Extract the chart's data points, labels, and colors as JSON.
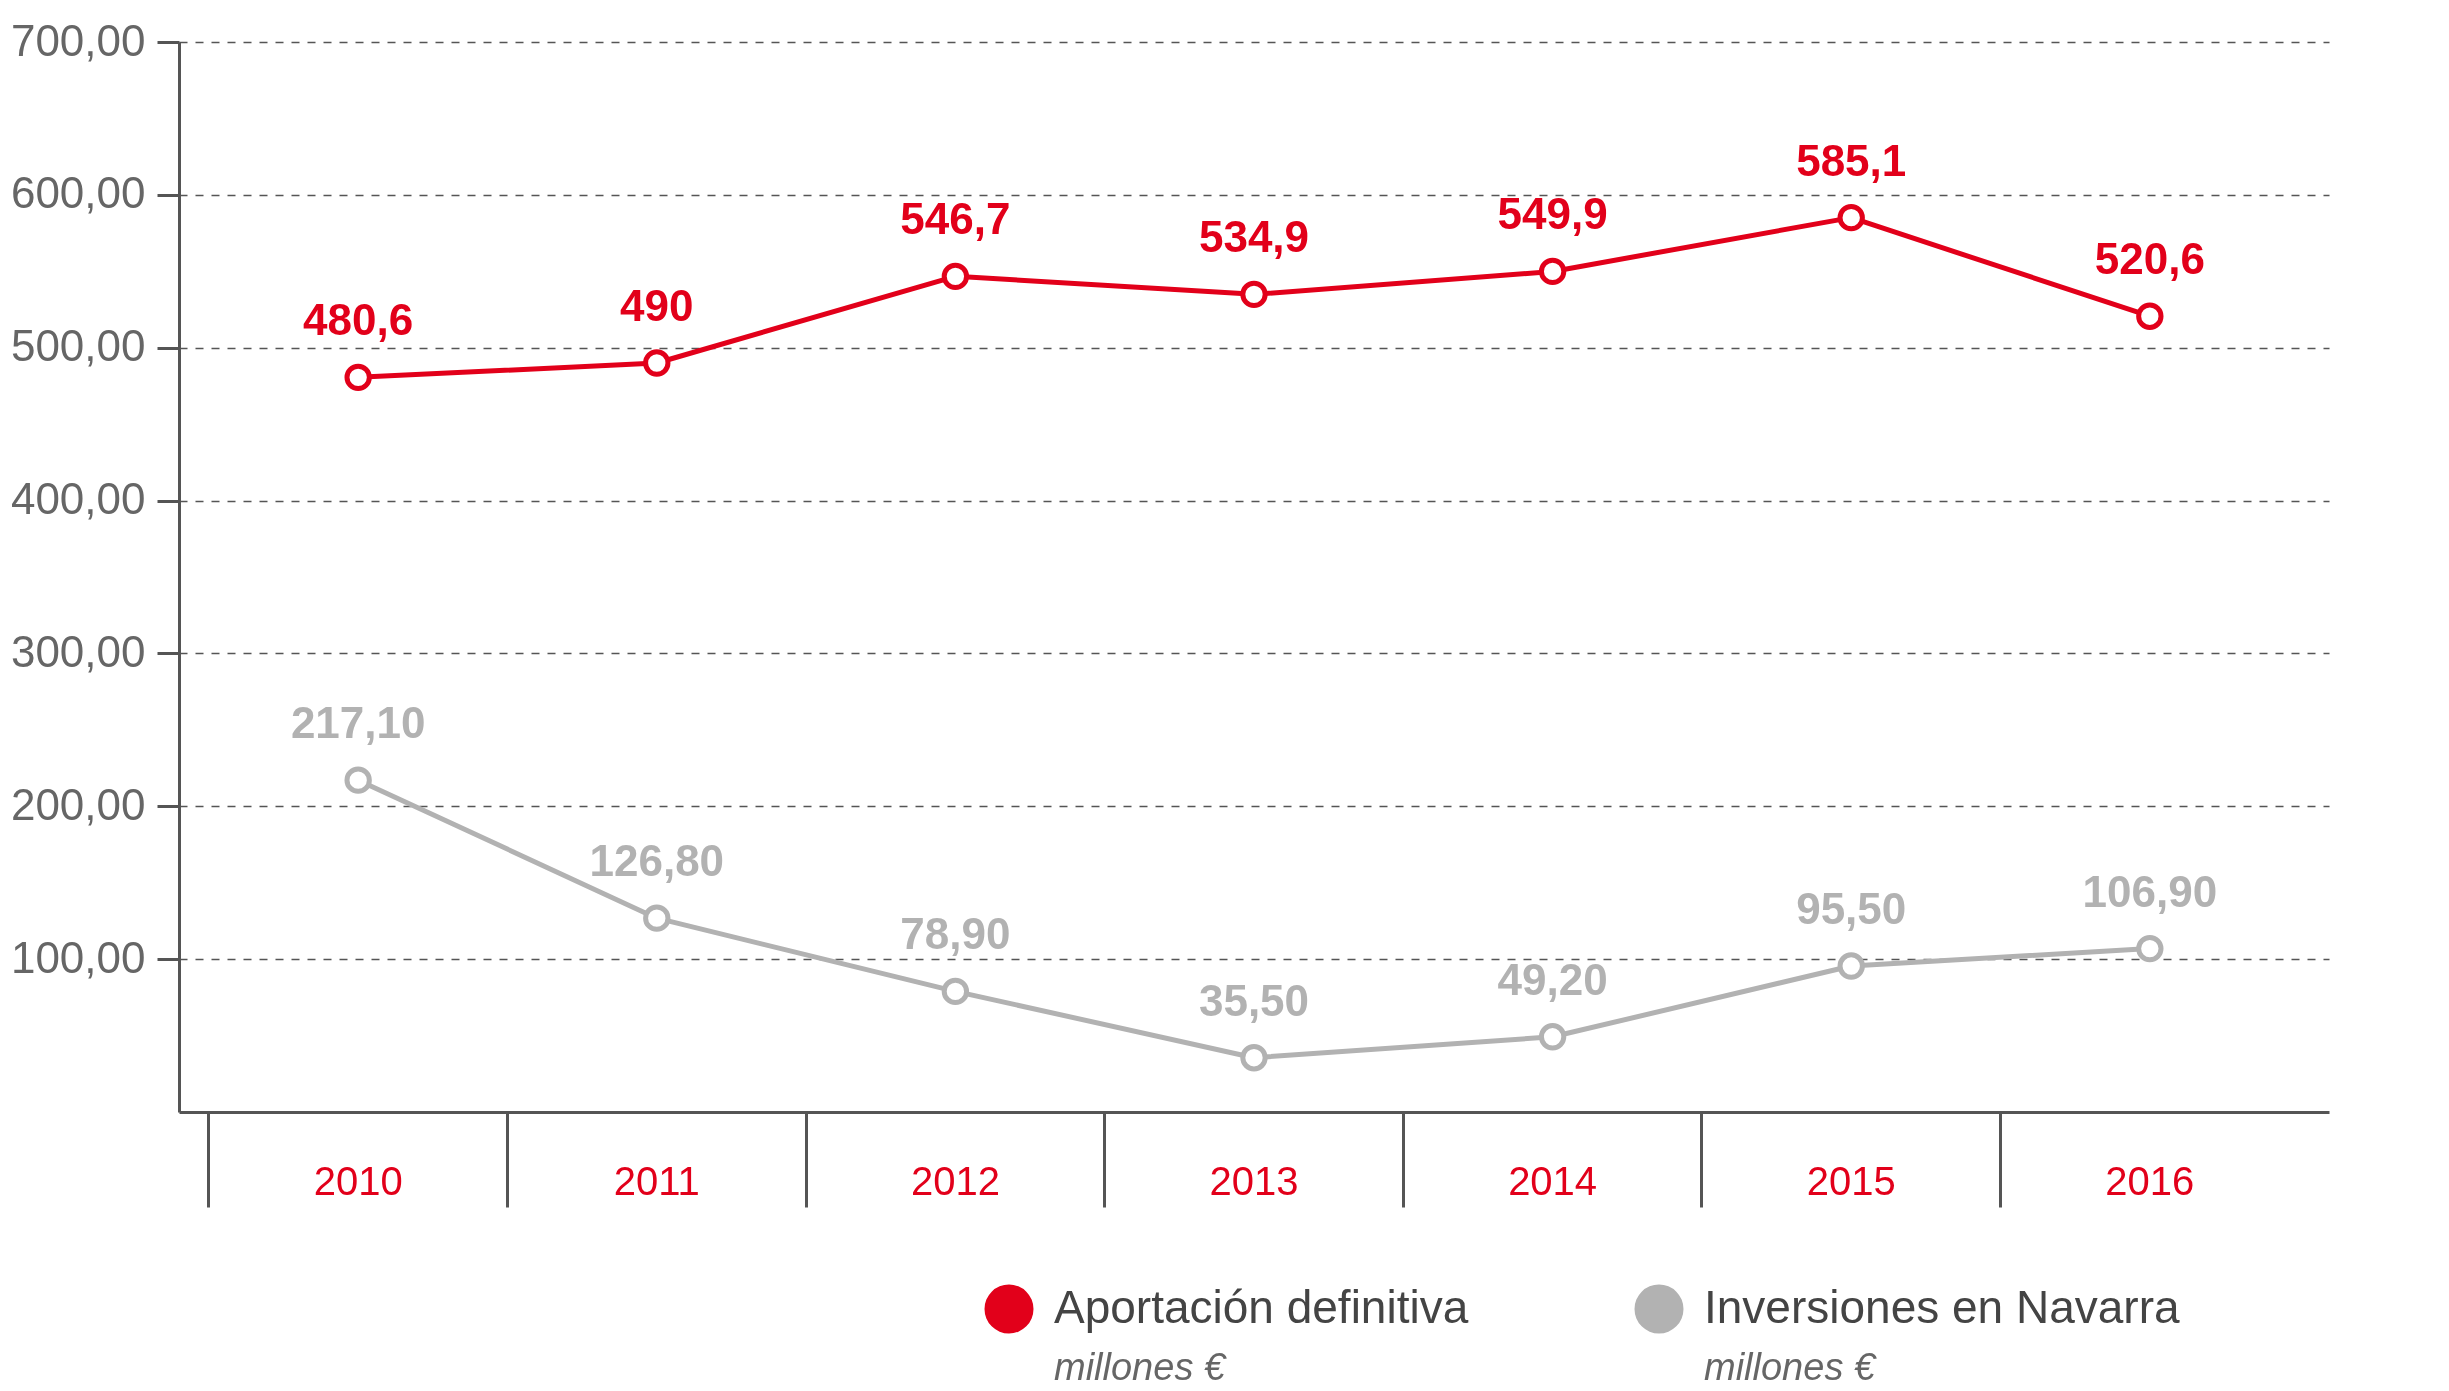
{
  "chart_data": {
    "type": "line",
    "categories": [
      "2010",
      "2011",
      "2012",
      "2013",
      "2014",
      "2015",
      "2016"
    ],
    "series": [
      {
        "name": "Aportación definitiva",
        "color": "#e2001a",
        "values": [
          480.6,
          490,
          546.7,
          534.9,
          549.9,
          585.1,
          520.6
        ],
        "value_labels": [
          "480,6",
          "490",
          "546,7",
          "534,9",
          "549,9",
          "585,1",
          "520,6"
        ]
      },
      {
        "name": "Inversiones en Navarra",
        "color": "#b2b2b2",
        "values": [
          217.1,
          126.8,
          78.9,
          35.5,
          49.2,
          95.5,
          106.9
        ],
        "value_labels": [
          "217,10",
          "126,80",
          "78,90",
          "35,50",
          "49,20",
          "95,50",
          "106,90"
        ]
      }
    ],
    "ylim": [
      0,
      700
    ],
    "yticks": [
      {
        "value": 100,
        "label": "100,00"
      },
      {
        "value": 200,
        "label": "200,00"
      },
      {
        "value": 300,
        "label": "300,00"
      },
      {
        "value": 400,
        "label": "400,00"
      },
      {
        "value": 500,
        "label": "500,00"
      },
      {
        "value": 600,
        "label": "600,00"
      },
      {
        "value": 700,
        "label": "700,00"
      }
    ],
    "grid": "y",
    "marker": "circle",
    "line_style": "solid",
    "legend": "bottom right",
    "annotations": [
      "millones €",
      "millones €"
    ]
  }
}
